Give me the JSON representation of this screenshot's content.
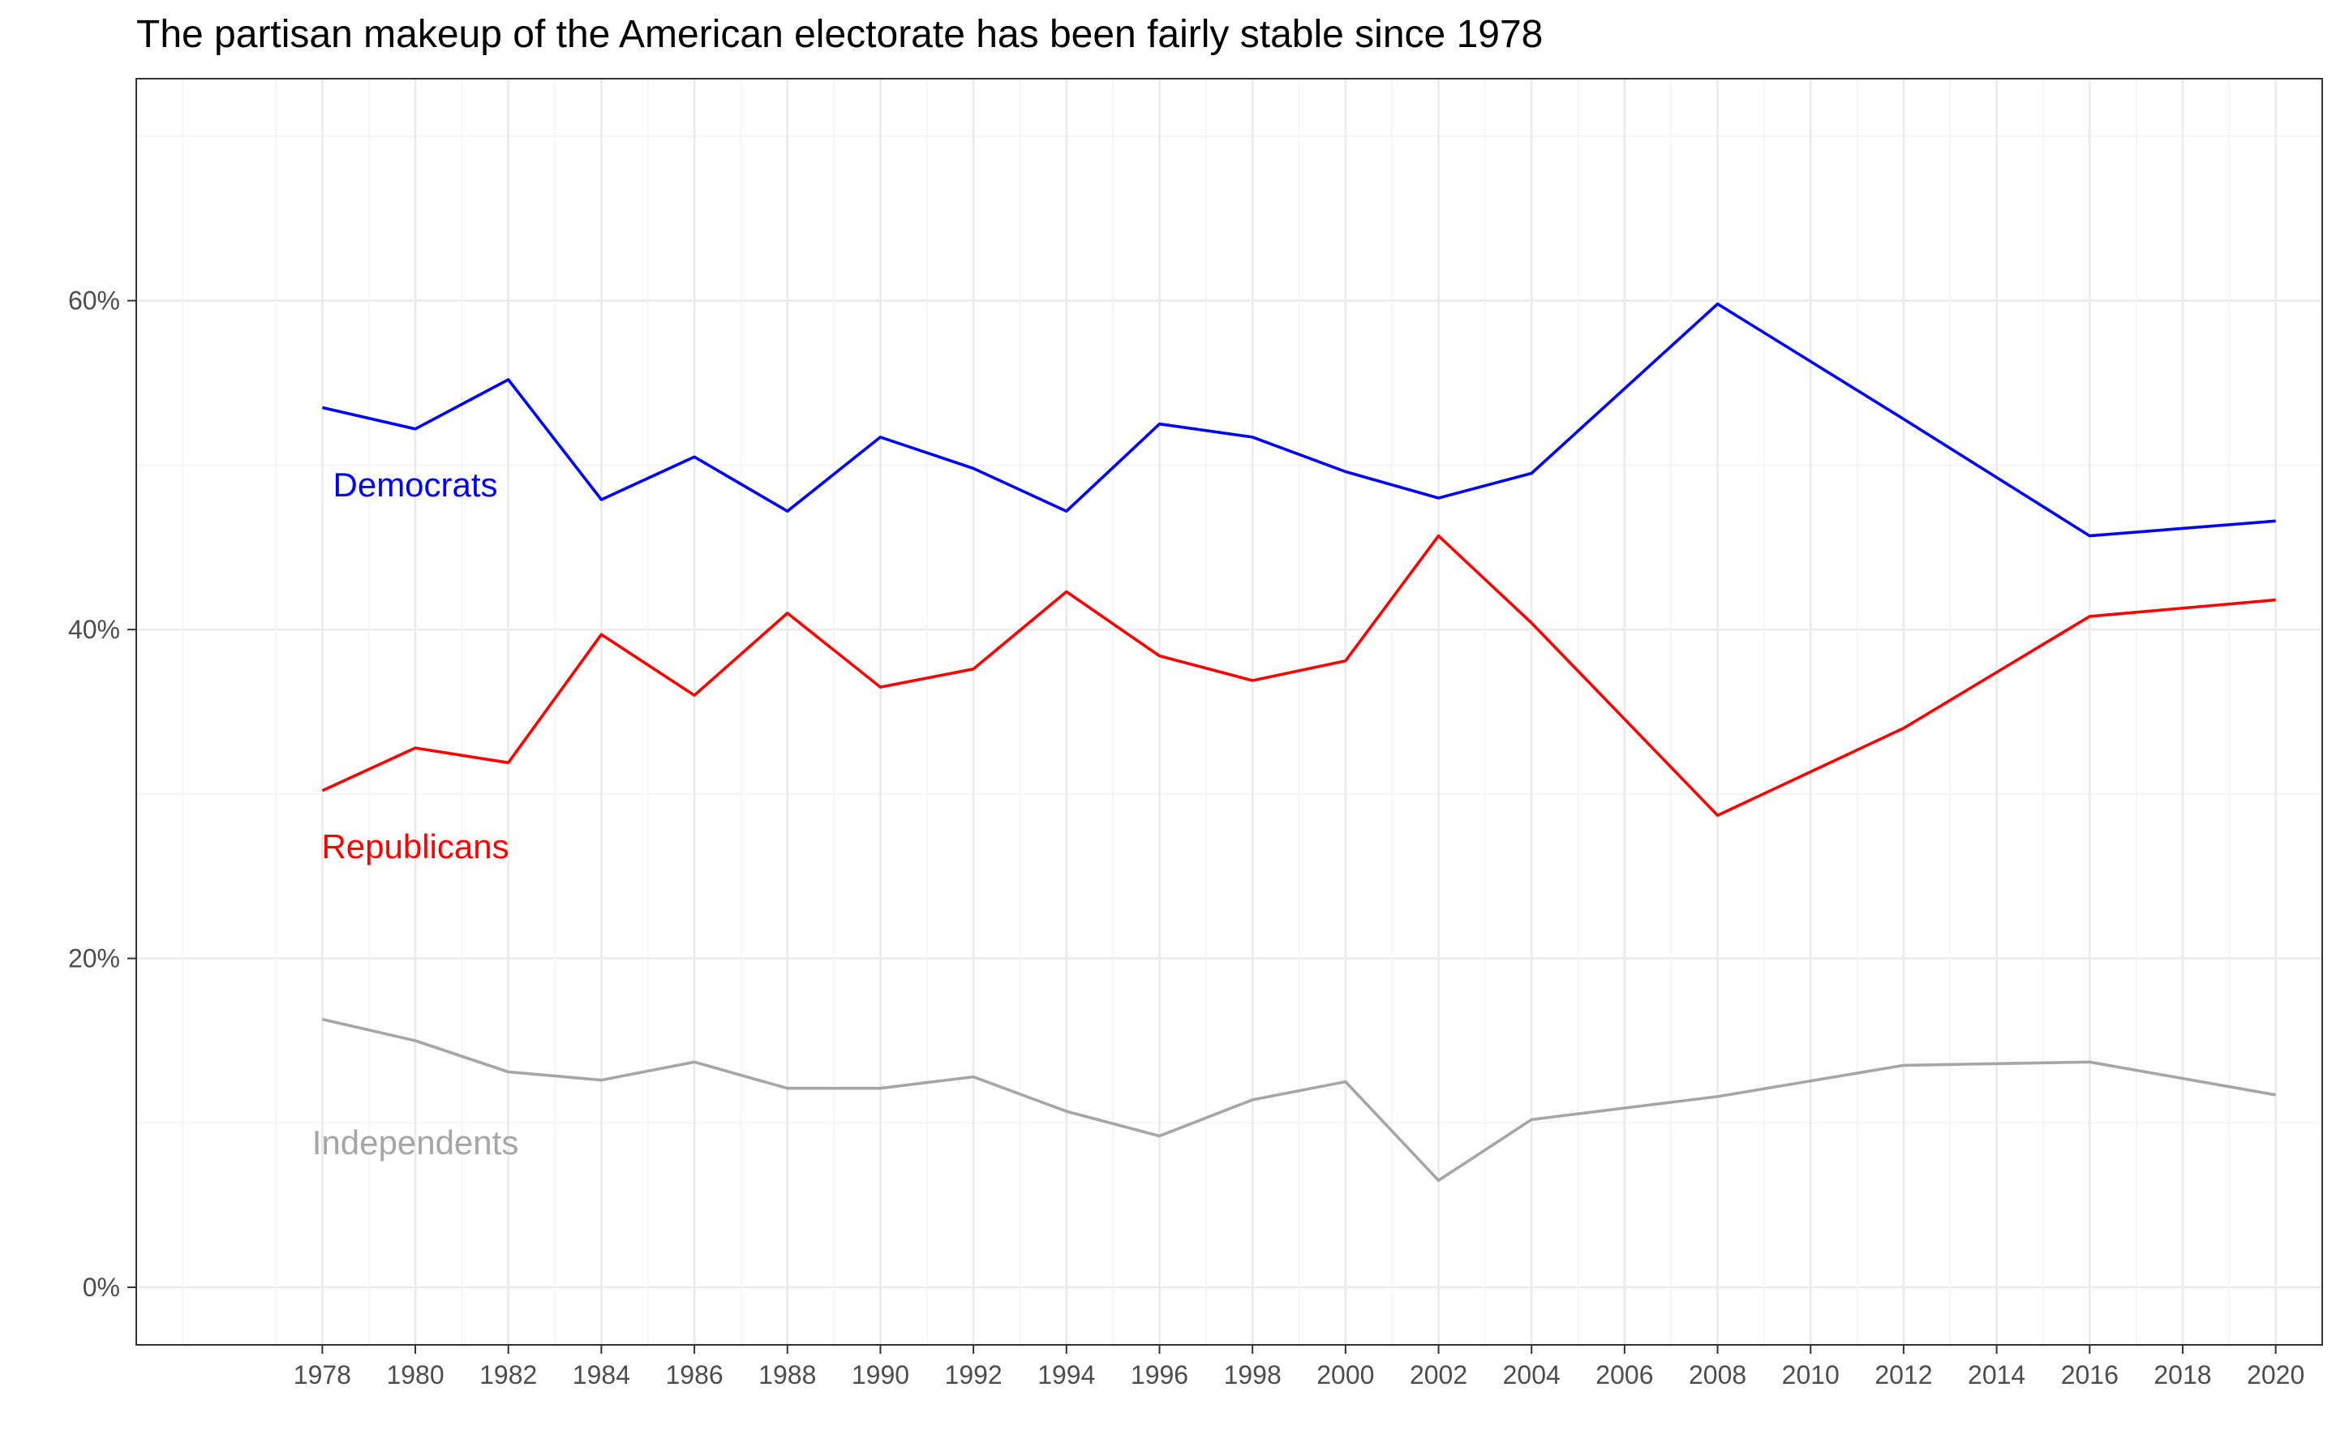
{
  "chart_data": {
    "type": "line",
    "title": "The partisan makeup of the American electorate has been fairly stable since 1978",
    "xlabel": "",
    "ylabel": "",
    "x": [
      1978,
      1980,
      1982,
      1984,
      1986,
      1988,
      1990,
      1992,
      1994,
      1996,
      1998,
      2000,
      2002,
      2004,
      2008,
      2012,
      2016,
      2020
    ],
    "x_ticks": [
      "1978",
      "1980",
      "1982",
      "1984",
      "1986",
      "1988",
      "1990",
      "1992",
      "1994",
      "1996",
      "1998",
      "2000",
      "2002",
      "2004",
      "2006",
      "2008",
      "2010",
      "2012",
      "2014",
      "2016",
      "2018",
      "2020"
    ],
    "y_ticks": [
      "0%",
      "20%",
      "40%",
      "60%"
    ],
    "xlim": [
      1974,
      2021
    ],
    "ylim": [
      -3.5,
      73.5
    ],
    "grid": true,
    "legend": "none",
    "series": [
      {
        "name": "Democrats",
        "color": "#0000ff",
        "values": [
          53.5,
          52.2,
          55.2,
          47.9,
          50.5,
          47.2,
          51.7,
          49.8,
          47.2,
          52.5,
          51.7,
          49.6,
          48.0,
          49.5,
          59.8,
          52.8,
          45.7,
          46.6
        ]
      },
      {
        "name": "Republicans",
        "color": "#ff0000",
        "values": [
          30.2,
          32.8,
          31.9,
          39.7,
          36.0,
          41.0,
          36.5,
          37.6,
          42.3,
          38.4,
          36.9,
          38.1,
          45.7,
          40.4,
          28.7,
          34.0,
          40.8,
          41.8
        ]
      },
      {
        "name": "Independents",
        "color": "#a6a6a6",
        "values": [
          16.3,
          15.0,
          13.1,
          12.6,
          13.7,
          12.1,
          12.1,
          12.8,
          10.7,
          9.2,
          11.4,
          12.5,
          6.5,
          10.2,
          11.6,
          13.5,
          13.7,
          11.7
        ]
      }
    ],
    "labels": [
      {
        "text": "Democrats",
        "series": "Democrats",
        "x": 1980,
        "y": 48.8
      },
      {
        "text": "Republicans",
        "series": "Republicans",
        "x": 1980,
        "y": 26.8
      },
      {
        "text": "Independents",
        "series": "Independents",
        "x": 1980,
        "y": 8.8
      }
    ]
  }
}
